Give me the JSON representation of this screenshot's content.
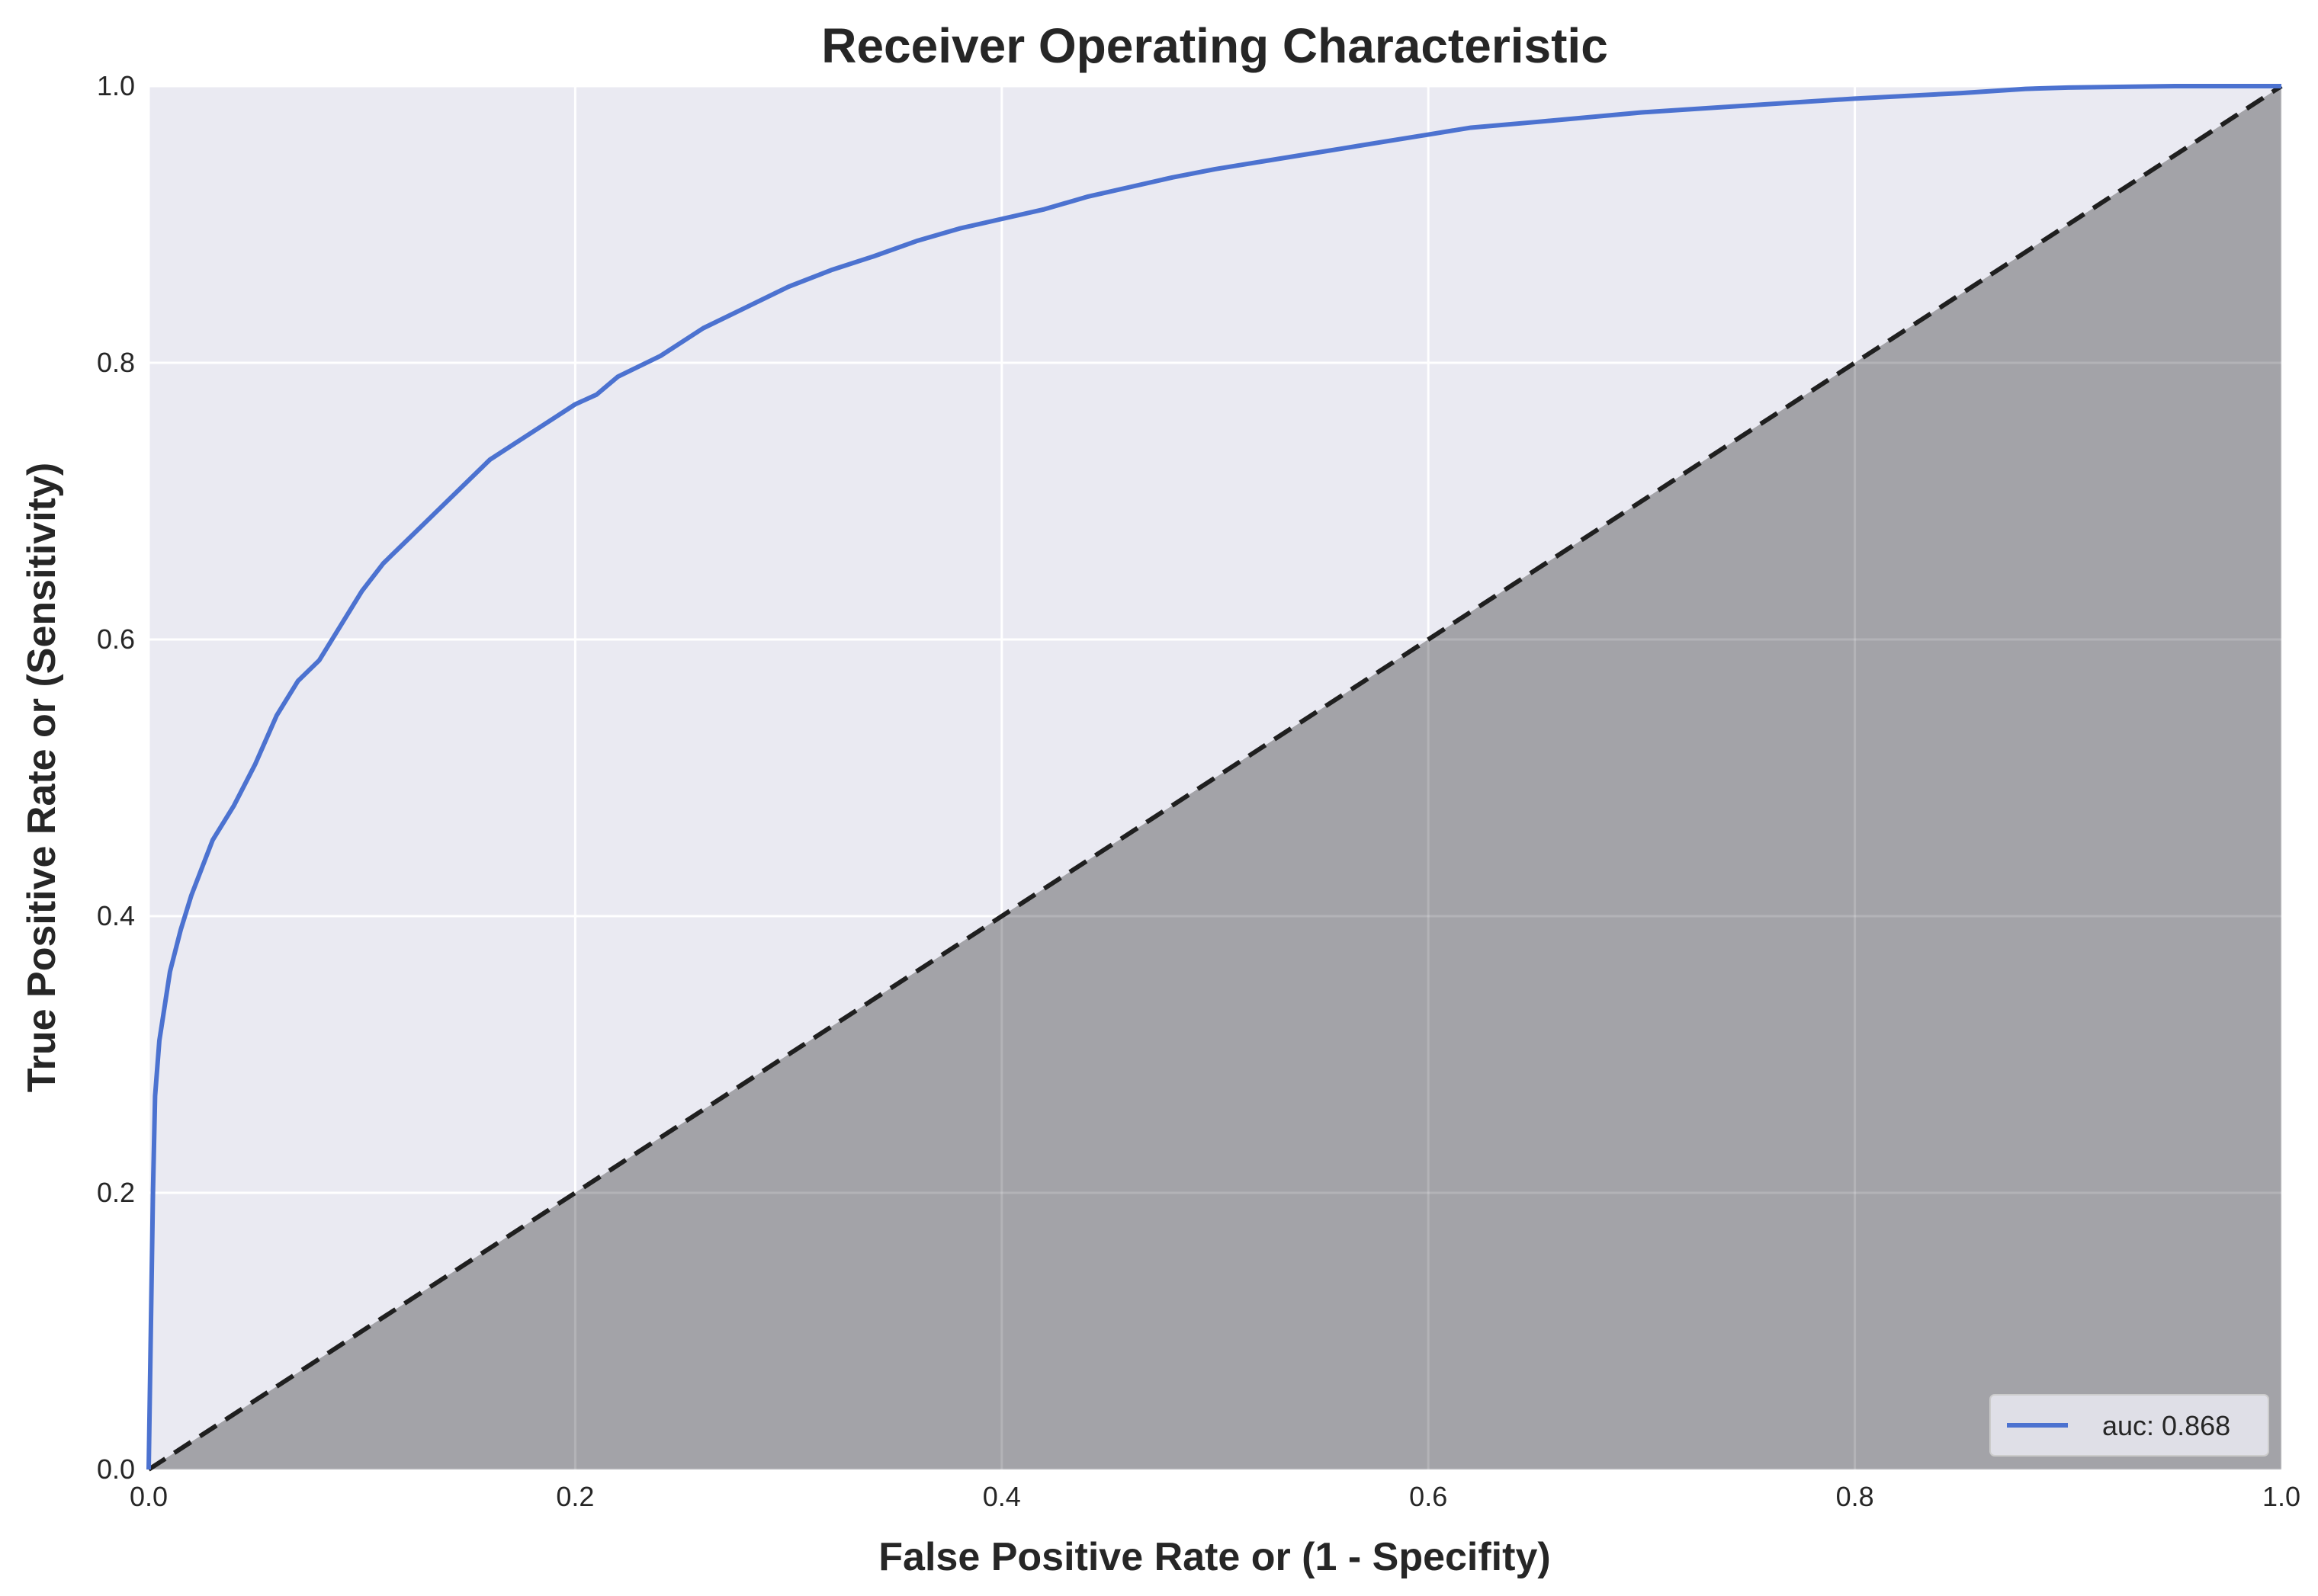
{
  "chart_data": {
    "type": "line",
    "title": "Receiver Operating Characteristic",
    "xlabel": "False Positive Rate or (1 - Specifity)",
    "ylabel": "True Positive Rate or (Sensitivity)",
    "xlim": [
      0.0,
      1.0
    ],
    "ylim": [
      0.0,
      1.0
    ],
    "xticks": [
      "0.0",
      "0.2",
      "0.4",
      "0.6",
      "0.8",
      "1.0"
    ],
    "yticks": [
      "0.0",
      "0.2",
      "0.4",
      "0.6",
      "0.8",
      "1.0"
    ],
    "grid": true,
    "legend_position": "bottom-right",
    "series": [
      {
        "name": "auc: 0.868",
        "color": "#4c72d0",
        "x": [
          0.0,
          0.001,
          0.002,
          0.003,
          0.004,
          0.005,
          0.007,
          0.01,
          0.015,
          0.02,
          0.025,
          0.03,
          0.04,
          0.05,
          0.06,
          0.07,
          0.08,
          0.09,
          0.1,
          0.11,
          0.12,
          0.13,
          0.14,
          0.15,
          0.16,
          0.17,
          0.18,
          0.19,
          0.2,
          0.21,
          0.22,
          0.24,
          0.26,
          0.28,
          0.3,
          0.32,
          0.34,
          0.36,
          0.38,
          0.4,
          0.42,
          0.44,
          0.46,
          0.48,
          0.5,
          0.52,
          0.54,
          0.56,
          0.58,
          0.6,
          0.62,
          0.65,
          0.7,
          0.75,
          0.8,
          0.85,
          0.88,
          0.9,
          0.95,
          1.0
        ],
        "y": [
          0.0,
          0.1,
          0.2,
          0.27,
          0.29,
          0.31,
          0.33,
          0.36,
          0.39,
          0.415,
          0.435,
          0.455,
          0.48,
          0.51,
          0.545,
          0.57,
          0.585,
          0.61,
          0.635,
          0.655,
          0.67,
          0.685,
          0.7,
          0.715,
          0.73,
          0.74,
          0.75,
          0.76,
          0.77,
          0.777,
          0.79,
          0.805,
          0.825,
          0.84,
          0.855,
          0.867,
          0.877,
          0.888,
          0.897,
          0.904,
          0.911,
          0.92,
          0.927,
          0.934,
          0.94,
          0.945,
          0.95,
          0.955,
          0.96,
          0.965,
          0.97,
          0.974,
          0.981,
          0.986,
          0.991,
          0.995,
          0.998,
          0.999,
          1.0,
          1.0
        ]
      },
      {
        "name": "",
        "color": "#1f1f1f",
        "style": "dashed",
        "x": [
          0.0,
          1.0
        ],
        "y": [
          0.0,
          1.0
        ]
      }
    ],
    "colors": {
      "plot_background": "#eaeaf2",
      "grid": "#ffffff",
      "shaded_area": "#a3a3a8",
      "roc_line": "#4c72d0",
      "diagonal": "#1f1f1f"
    }
  }
}
